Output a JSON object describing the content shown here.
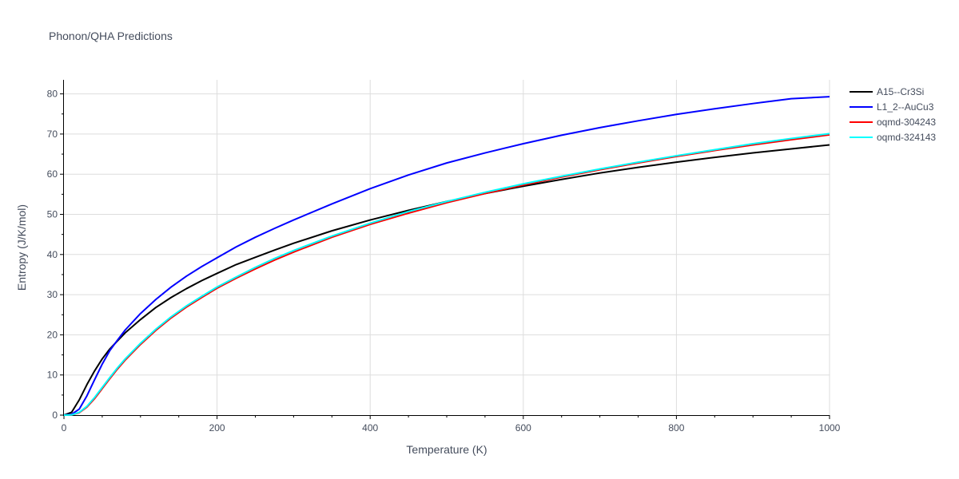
{
  "chart_data": {
    "type": "line",
    "title": "Phonon/QHA Predictions",
    "xlabel": "Temperature (K)",
    "ylabel": "Entropy (J/K/mol)",
    "xlim": [
      0,
      1000
    ],
    "ylim": [
      0,
      83.5
    ],
    "xticks": [
      0,
      200,
      400,
      600,
      800,
      1000
    ],
    "yticks": [
      0,
      10,
      20,
      30,
      40,
      50,
      60,
      70,
      80
    ],
    "grid": true,
    "legend_position": "top-right",
    "series": [
      {
        "name": "A15--Cr3Si",
        "color": "#000000",
        "x": [
          0,
          10,
          20,
          30,
          40,
          50,
          60,
          70,
          80,
          100,
          120,
          140,
          160,
          180,
          200,
          225,
          250,
          275,
          300,
          350,
          400,
          450,
          500,
          550,
          600,
          650,
          700,
          750,
          800,
          850,
          900,
          950,
          1000
        ],
        "y": [
          0,
          0.7,
          3.8,
          7.6,
          11.0,
          14.0,
          16.5,
          18.5,
          20.5,
          23.8,
          26.8,
          29.3,
          31.5,
          33.5,
          35.3,
          37.5,
          39.3,
          41.1,
          42.8,
          45.9,
          48.6,
          51.0,
          53.2,
          55.2,
          57.0,
          58.7,
          60.3,
          61.7,
          63.0,
          64.2,
          65.3,
          66.3,
          67.3
        ]
      },
      {
        "name": "L1_2--AuCu3",
        "color": "#0000ff",
        "x": [
          0,
          10,
          20,
          30,
          40,
          50,
          60,
          70,
          80,
          100,
          120,
          140,
          160,
          180,
          200,
          225,
          250,
          275,
          300,
          350,
          400,
          450,
          500,
          550,
          600,
          650,
          700,
          750,
          800,
          850,
          900,
          950,
          1000
        ],
        "y": [
          0,
          0.2,
          1.5,
          4.8,
          8.8,
          12.7,
          16.1,
          18.7,
          21.2,
          25.3,
          28.8,
          31.9,
          34.6,
          37.0,
          39.2,
          41.9,
          44.3,
          46.5,
          48.6,
          52.6,
          56.4,
          59.8,
          62.8,
          65.3,
          67.6,
          69.7,
          71.6,
          73.3,
          74.9,
          76.3,
          77.6,
          78.8,
          79.3
        ]
      },
      {
        "name": "oqmd-304243",
        "color": "#ff0000",
        "x": [
          0,
          10,
          20,
          30,
          40,
          50,
          60,
          70,
          80,
          100,
          120,
          140,
          160,
          180,
          200,
          225,
          250,
          275,
          300,
          350,
          400,
          450,
          500,
          550,
          600,
          650,
          700,
          750,
          800,
          850,
          900,
          950,
          1000
        ],
        "y": [
          0,
          0.05,
          0.6,
          2.0,
          4.1,
          6.6,
          9.1,
          11.5,
          13.7,
          17.6,
          21.1,
          24.2,
          26.9,
          29.3,
          31.6,
          34.1,
          36.4,
          38.6,
          40.6,
          44.3,
          47.5,
          50.3,
          52.9,
          55.2,
          57.3,
          59.3,
          61.1,
          62.8,
          64.4,
          65.9,
          67.3,
          68.6,
          69.8
        ]
      },
      {
        "name": "oqmd-324143",
        "color": "#00ffff",
        "x": [
          0,
          10,
          20,
          30,
          40,
          50,
          60,
          70,
          80,
          100,
          120,
          140,
          160,
          180,
          200,
          225,
          250,
          275,
          300,
          350,
          400,
          450,
          500,
          550,
          600,
          650,
          700,
          750,
          800,
          850,
          900,
          950,
          1000
        ],
        "y": [
          0,
          0.05,
          0.7,
          2.2,
          4.4,
          6.9,
          9.4,
          11.8,
          14.0,
          17.9,
          21.4,
          24.5,
          27.2,
          29.6,
          31.9,
          34.4,
          36.8,
          39.0,
          41.0,
          44.6,
          47.8,
          50.7,
          53.2,
          55.5,
          57.6,
          59.5,
          61.3,
          63.0,
          64.6,
          66.1,
          67.6,
          68.9,
          70.1
        ]
      }
    ]
  }
}
